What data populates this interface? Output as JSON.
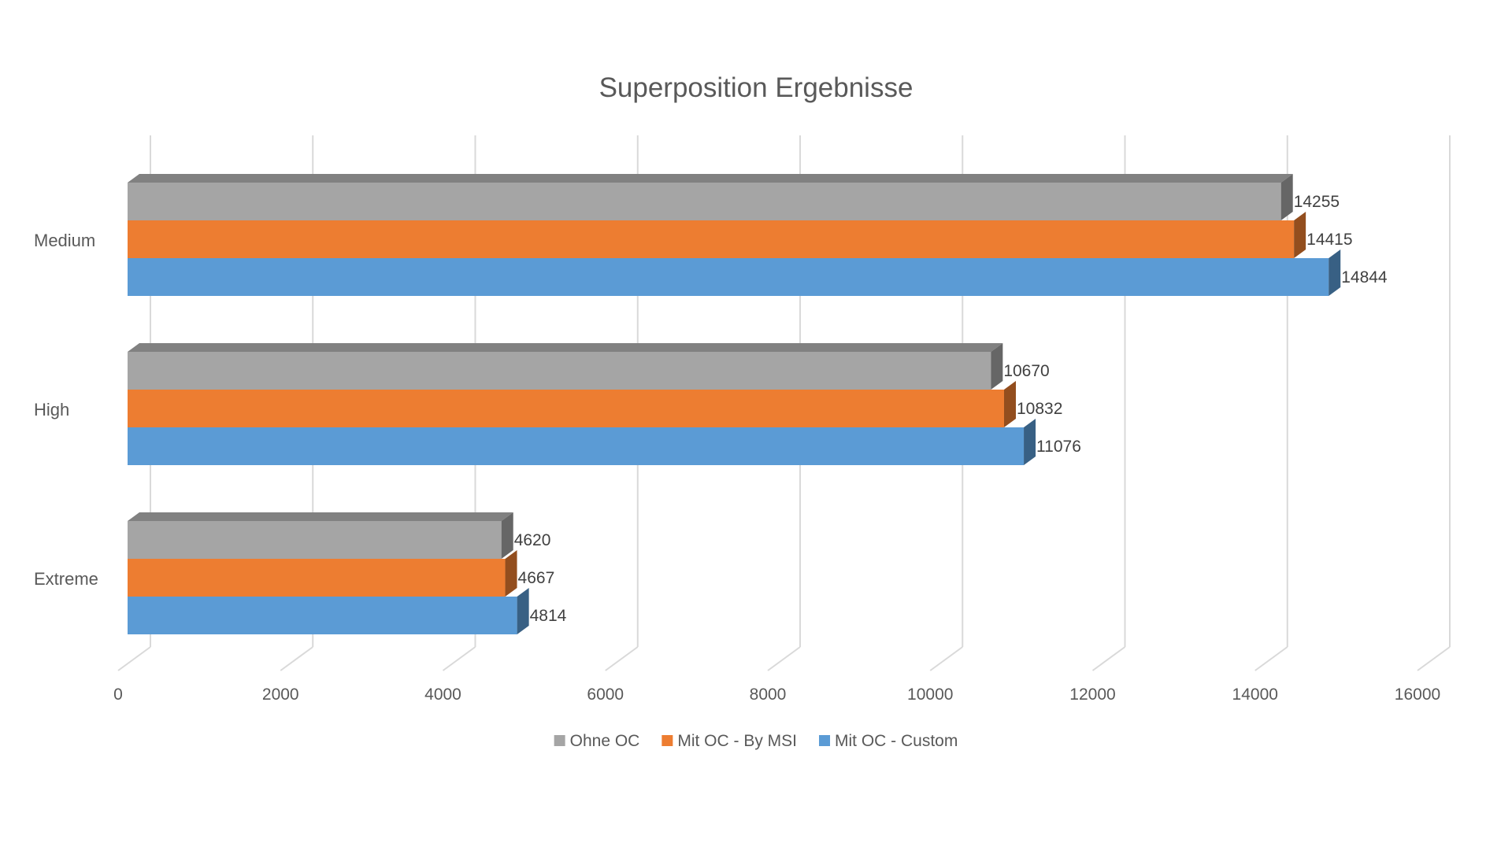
{
  "chart_data": {
    "type": "bar",
    "orientation": "horizontal",
    "style": "3d",
    "title": "Superposition Ergebnisse",
    "xlabel": "",
    "ylabel": "",
    "categories": [
      "Medium",
      "High",
      "Extreme"
    ],
    "series": [
      {
        "name": "Ohne OC",
        "values": [
          14255,
          10670,
          4620
        ],
        "color": "#A5A5A5"
      },
      {
        "name": "Mit OC - By MSI",
        "values": [
          14415,
          10832,
          4667
        ],
        "color": "#ED7D31"
      },
      {
        "name": "Mit OC - Custom",
        "values": [
          14844,
          11076,
          4814
        ],
        "color": "#5B9BD5"
      }
    ],
    "xlim": [
      0,
      16000
    ],
    "xticks": [
      "0",
      "2000",
      "4000",
      "6000",
      "8000",
      "10000",
      "12000",
      "14000",
      "16000"
    ],
    "grid": true,
    "legend": "bottom",
    "data_labels": true
  }
}
